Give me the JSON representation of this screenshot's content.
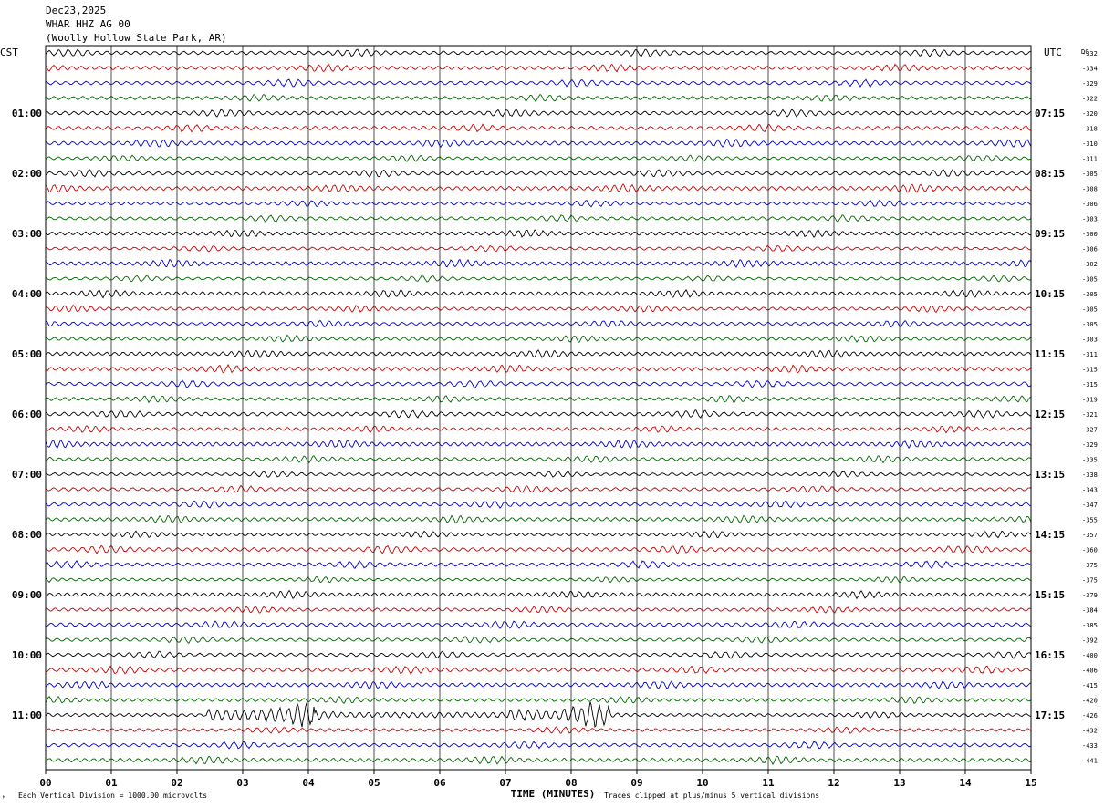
{
  "header": {
    "date": "Dec23,2025",
    "station": "WHAR HHZ AG 00",
    "location": "(Woolly Hollow State Park, AR)"
  },
  "axes": {
    "left_tz": "CST",
    "right_tz": "UTC",
    "dc_label": "DC",
    "xlabel": "TIME (MINUTES)"
  },
  "footer": {
    "scale_note": "Each Vertical Division = 1000.00 microvolts",
    "clip_note": "Traces clipped at plus/minus 5 vertical divisions"
  },
  "chart_data": {
    "type": "line",
    "x_ticks": [
      "00",
      "01",
      "02",
      "03",
      "04",
      "05",
      "06",
      "07",
      "08",
      "09",
      "10",
      "11",
      "12",
      "13",
      "14",
      "15"
    ],
    "xlim": [
      0,
      15
    ],
    "trace_colors": [
      "#000000",
      "#cc0000",
      "#0000cc",
      "#006400"
    ],
    "left_hour_labels": [
      "01:00",
      "02:00",
      "03:00",
      "04:00",
      "05:00",
      "06:00",
      "07:00",
      "08:00",
      "09:00",
      "10:00",
      "11:00"
    ],
    "right_hour_labels": [
      "07:15",
      "08:15",
      "09:15",
      "10:15",
      "11:15",
      "12:15",
      "13:15",
      "14:15",
      "15:15",
      "16:15",
      "17:15"
    ],
    "dc_offsets": [
      "-332",
      "-334",
      "-329",
      "-322",
      "-320",
      "-318",
      "-310",
      "-311",
      "-305",
      "-308",
      "-306",
      "-303",
      "-300",
      "-306",
      "-302",
      "-305",
      "-305",
      "-305",
      "-305",
      "-303",
      "-311",
      "-315",
      "-315",
      "-319",
      "-321",
      "-327",
      "-329",
      "-335",
      "-338",
      "-343",
      "-347",
      "-355",
      "-357",
      "-360",
      "-375",
      "-375",
      "-379",
      "-384",
      "-385",
      "-392",
      "-400",
      "-406",
      "-415",
      "-420",
      "-426",
      "-432",
      "-433",
      "-441"
    ],
    "grid": true
  }
}
